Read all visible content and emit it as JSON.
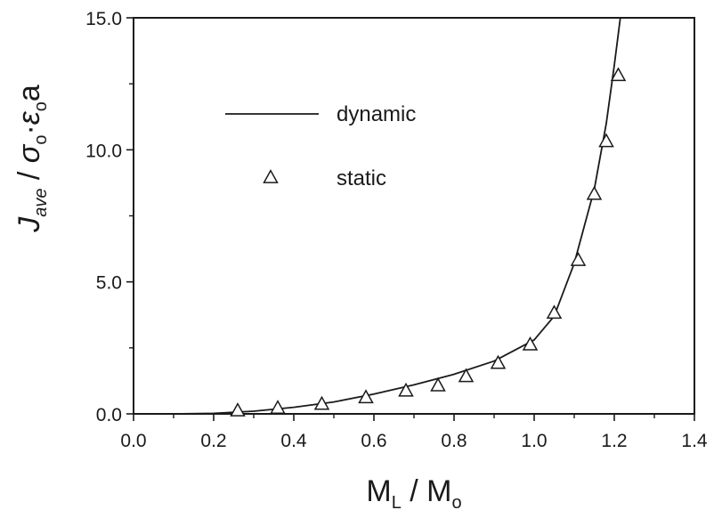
{
  "chart_data": {
    "type": "line",
    "xlabel": "M_L / M_o",
    "ylabel": "J_ave / σ_o ε_o a",
    "xlim": [
      0.0,
      1.4
    ],
    "ylim": [
      0.0,
      15.0
    ],
    "xticks": [
      "0.0",
      "0.2",
      "0.4",
      "0.6",
      "0.8",
      "1.0",
      "1.2",
      "1.4"
    ],
    "yticks": [
      "0.0",
      "5.0",
      "10.0",
      "15.0"
    ],
    "grid": false,
    "legend_position": "top-left",
    "series": [
      {
        "name": "dynamic",
        "style": "solid-line",
        "color": "#1a1a1a",
        "x": [
          0.0,
          0.1,
          0.2,
          0.3,
          0.4,
          0.5,
          0.6,
          0.7,
          0.8,
          0.9,
          1.0,
          1.05,
          1.1,
          1.15,
          1.18,
          1.2,
          1.215
        ],
        "y": [
          0.0,
          0.0,
          0.02,
          0.1,
          0.25,
          0.45,
          0.75,
          1.1,
          1.5,
          2.0,
          2.8,
          3.7,
          5.7,
          8.5,
          11.0,
          13.2,
          15.0
        ]
      },
      {
        "name": "static",
        "style": "open-triangle",
        "color": "#1a1a1a",
        "x": [
          0.26,
          0.36,
          0.47,
          0.58,
          0.68,
          0.76,
          0.83,
          0.91,
          0.99,
          1.05,
          1.11,
          1.15,
          1.18,
          1.21
        ],
        "y": [
          0.1,
          0.2,
          0.35,
          0.6,
          0.85,
          1.05,
          1.4,
          1.9,
          2.6,
          3.8,
          5.8,
          8.3,
          10.3,
          12.8
        ]
      }
    ]
  },
  "axes": {
    "x_title_main_a": "M",
    "x_title_sub_a": "L",
    "x_title_slash": " / ",
    "x_title_main_b": "M",
    "x_title_sub_b": "o",
    "y_title_main": "J",
    "y_title_sub1": "ave",
    "y_title_slash": " / ",
    "y_title_sigma": "σ",
    "y_title_sub2": "o",
    "y_title_dot": "·",
    "y_title_eps": "ε",
    "y_title_sub3": "o",
    "y_title_a": "a"
  }
}
